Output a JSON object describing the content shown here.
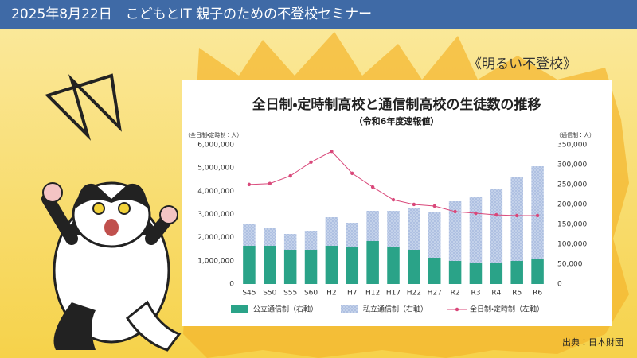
{
  "header": {
    "title": "2025年8月22日　こどもとIT 親子のための不登校セミナー"
  },
  "tagline": "《明るい不登校》",
  "source": "出典：日本財団",
  "chart_data": {
    "type": "bar",
    "title": "全日制・定時制高校と通信制高校の生徒数の推移",
    "subtitle": "（令和6年度速報値）",
    "y_label": "（全日制・定時制：人）",
    "y2_label": "（通信制：人）",
    "categories": [
      "S45",
      "S50",
      "S55",
      "S60",
      "H2",
      "H7",
      "H12",
      "H17",
      "H22",
      "H27",
      "R2",
      "R3",
      "R4",
      "R5",
      "R6"
    ],
    "series": [
      {
        "name": "公立通信制（右軸）",
        "type": "bar",
        "axis": "y2",
        "color": "#2aa388",
        "values": [
          96000,
          96000,
          86000,
          86000,
          96000,
          92000,
          108000,
          92000,
          86000,
          66000,
          58000,
          54000,
          54000,
          58000,
          62000
        ]
      },
      {
        "name": "私立通信制（右軸）",
        "type": "bar",
        "axis": "y2",
        "color": "#c8d5ec",
        "values": [
          54000,
          46000,
          40000,
          48000,
          72000,
          62000,
          76000,
          92000,
          104000,
          116000,
          150000,
          166000,
          186000,
          210000,
          234000
        ]
      },
      {
        "name": "全日制・定時制（左軸）",
        "type": "line",
        "axis": "y",
        "color": "#d9487a",
        "values": [
          4290000,
          4330000,
          4660000,
          5250000,
          5720000,
          4770000,
          4180000,
          3630000,
          3430000,
          3360000,
          3120000,
          3050000,
          2980000,
          2950000,
          2950000
        ]
      }
    ],
    "ylim": [
      0,
      6000000
    ],
    "yticks": [
      0,
      {
        "value": 1000000,
        "label": "1,000,000"
      },
      {
        "value": 2000000,
        "label": "2,000,000"
      },
      {
        "value": 3000000,
        "label": "3,000,000"
      },
      {
        "value": 4000000,
        "label": "4,000,000"
      },
      {
        "value": 5000000,
        "label": "5,000,000"
      },
      {
        "value": 6000000,
        "label": "6,000,000"
      }
    ],
    "y2lim": [
      0,
      350000
    ],
    "y2ticks": [
      0,
      {
        "value": 50000,
        "label": "50,000"
      },
      {
        "value": 100000,
        "label": "100,000"
      },
      {
        "value": 150000,
        "label": "150,000"
      },
      {
        "value": 200000,
        "label": "200,000"
      },
      {
        "value": 250000,
        "label": "250,000"
      },
      {
        "value": 300000,
        "label": "300,000"
      },
      {
        "value": 350000,
        "label": "350,000"
      }
    ],
    "grid": false,
    "legend": "bottom"
  }
}
